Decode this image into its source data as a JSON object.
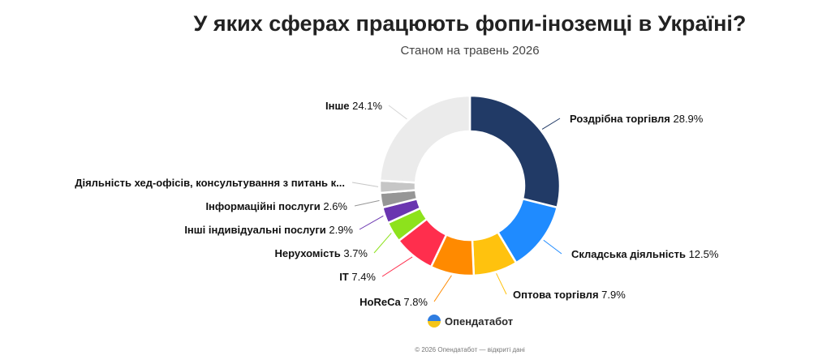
{
  "title": "У яких сферах працюють фопи-іноземці в Україні?",
  "subtitle": "Станом на травень 2026",
  "brand": {
    "name": "Опендатабот",
    "icon": "opendatabot-logo-icon"
  },
  "footer": "© 2026 Опендатабот — відкриті дані",
  "chart_data": {
    "type": "pie",
    "donut": true,
    "unit": "%",
    "slices": [
      {
        "label": "Роздрібна торгівля",
        "value": 28.9,
        "display": "28.9%",
        "color": "#213a66"
      },
      {
        "label": "Складська діяльність",
        "value": 12.5,
        "display": "12.5%",
        "color": "#1f8bff"
      },
      {
        "label": "Оптова торгівля",
        "value": 7.9,
        "display": "7.9%",
        "color": "#ffc20e"
      },
      {
        "label": "HoReCa",
        "value": 7.8,
        "display": "7.8%",
        "color": "#ff8a00"
      },
      {
        "label": "IT",
        "value": 7.4,
        "display": "7.4%",
        "color": "#ff2e4d"
      },
      {
        "label": "Нерухомість",
        "value": 3.7,
        "display": "3.7%",
        "color": "#8de21c"
      },
      {
        "label": "Інші індивідуальні послуги",
        "value": 2.9,
        "display": "2.9%",
        "color": "#6a35b0"
      },
      {
        "label": "Інформаційні послуги",
        "value": 2.6,
        "display": "2.6%",
        "color": "#969696"
      },
      {
        "label": "Діяльність хед-офісів, консультування з питань к...",
        "value": 2.2,
        "display": "",
        "color": "#c6c6c6"
      },
      {
        "label": "Інше",
        "value": 24.1,
        "display": "24.1%",
        "color": "#ebebeb"
      }
    ]
  }
}
